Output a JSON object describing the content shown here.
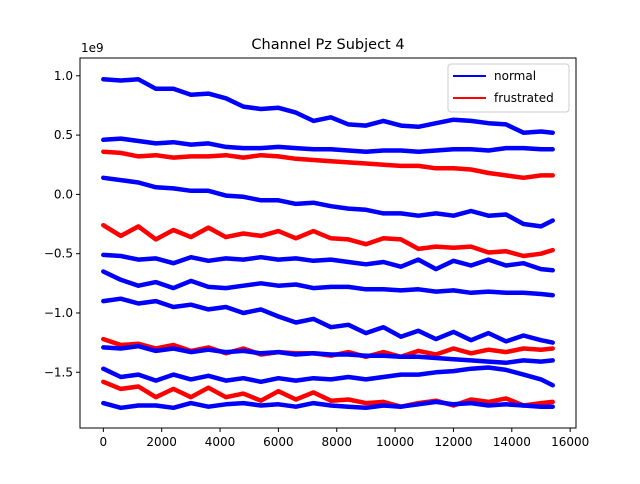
{
  "chart_data": {
    "type": "line",
    "title": "Channel Pz Subject 4",
    "xlabel": "",
    "ylabel": "",
    "y_scale_label": "1e9",
    "xlim": [
      -800,
      16200
    ],
    "ylim": [
      -1.97,
      1.15
    ],
    "x_ticks": [
      0,
      2000,
      4000,
      6000,
      8000,
      10000,
      12000,
      14000,
      16000
    ],
    "x_tick_labels": [
      "0",
      "2000",
      "4000",
      "6000",
      "8000",
      "10000",
      "12000",
      "14000",
      "16000"
    ],
    "y_ticks": [
      -1.5,
      -1.0,
      -0.5,
      0.0,
      0.5,
      1.0
    ],
    "y_tick_labels": [
      "−1.5",
      "−1.0",
      "−0.5",
      "0.0",
      "0.5",
      "1.0"
    ],
    "grid": false,
    "legend_position": "top-right",
    "legend": [
      {
        "label": "normal",
        "color": "#0000ff"
      },
      {
        "label": "frustrated",
        "color": "#ff0000"
      }
    ],
    "x": [
      0,
      600,
      1200,
      1800,
      2400,
      3000,
      3600,
      4200,
      4800,
      5400,
      6000,
      6600,
      7200,
      7800,
      8400,
      9000,
      9600,
      10200,
      10800,
      11400,
      12000,
      12600,
      13200,
      13800,
      14400,
      15000,
      15400
    ],
    "series": [
      {
        "class": "normal",
        "color": "#0000ff",
        "values": [
          0.97,
          0.96,
          0.97,
          0.89,
          0.89,
          0.84,
          0.85,
          0.81,
          0.74,
          0.72,
          0.73,
          0.69,
          0.62,
          0.65,
          0.59,
          0.58,
          0.62,
          0.58,
          0.57,
          0.6,
          0.63,
          0.62,
          0.6,
          0.59,
          0.52,
          0.53,
          0.52
        ]
      },
      {
        "class": "normal",
        "color": "#0000ff",
        "values": [
          0.46,
          0.47,
          0.45,
          0.43,
          0.44,
          0.42,
          0.43,
          0.4,
          0.39,
          0.39,
          0.4,
          0.39,
          0.38,
          0.38,
          0.37,
          0.36,
          0.37,
          0.37,
          0.36,
          0.37,
          0.38,
          0.38,
          0.37,
          0.39,
          0.39,
          0.38,
          0.38
        ]
      },
      {
        "class": "frustrated",
        "color": "#ff0000",
        "values": [
          0.36,
          0.35,
          0.32,
          0.33,
          0.31,
          0.32,
          0.32,
          0.33,
          0.31,
          0.33,
          0.32,
          0.3,
          0.29,
          0.28,
          0.27,
          0.26,
          0.25,
          0.24,
          0.24,
          0.22,
          0.22,
          0.21,
          0.18,
          0.16,
          0.14,
          0.16,
          0.16
        ]
      },
      {
        "class": "normal",
        "color": "#0000ff",
        "values": [
          0.14,
          0.12,
          0.1,
          0.06,
          0.05,
          0.03,
          0.03,
          -0.01,
          -0.02,
          -0.05,
          -0.05,
          -0.08,
          -0.07,
          -0.1,
          -0.12,
          -0.13,
          -0.16,
          -0.16,
          -0.18,
          -0.16,
          -0.18,
          -0.14,
          -0.18,
          -0.17,
          -0.25,
          -0.27,
          -0.22
        ]
      },
      {
        "class": "frustrated",
        "color": "#ff0000",
        "values": [
          -0.26,
          -0.35,
          -0.27,
          -0.38,
          -0.3,
          -0.36,
          -0.28,
          -0.36,
          -0.33,
          -0.35,
          -0.31,
          -0.37,
          -0.31,
          -0.37,
          -0.38,
          -0.42,
          -0.37,
          -0.38,
          -0.46,
          -0.44,
          -0.45,
          -0.44,
          -0.49,
          -0.48,
          -0.52,
          -0.5,
          -0.47
        ]
      },
      {
        "class": "normal",
        "color": "#0000ff",
        "values": [
          -0.51,
          -0.52,
          -0.55,
          -0.54,
          -0.58,
          -0.53,
          -0.56,
          -0.54,
          -0.55,
          -0.53,
          -0.55,
          -0.54,
          -0.56,
          -0.55,
          -0.57,
          -0.59,
          -0.57,
          -0.61,
          -0.55,
          -0.63,
          -0.56,
          -0.6,
          -0.55,
          -0.6,
          -0.58,
          -0.63,
          -0.64
        ]
      },
      {
        "class": "normal",
        "color": "#0000ff",
        "values": [
          -0.65,
          -0.72,
          -0.77,
          -0.74,
          -0.79,
          -0.73,
          -0.78,
          -0.79,
          -0.77,
          -0.75,
          -0.77,
          -0.76,
          -0.79,
          -0.78,
          -0.78,
          -0.8,
          -0.8,
          -0.81,
          -0.8,
          -0.82,
          -0.81,
          -0.83,
          -0.82,
          -0.83,
          -0.83,
          -0.84,
          -0.85
        ]
      },
      {
        "class": "normal",
        "color": "#0000ff",
        "values": [
          -0.9,
          -0.88,
          -0.92,
          -0.9,
          -0.95,
          -0.93,
          -0.97,
          -0.95,
          -1.0,
          -0.97,
          -1.03,
          -1.08,
          -1.05,
          -1.12,
          -1.1,
          -1.17,
          -1.12,
          -1.2,
          -1.15,
          -1.22,
          -1.16,
          -1.23,
          -1.17,
          -1.24,
          -1.19,
          -1.23,
          -1.25
        ]
      },
      {
        "class": "frustrated",
        "color": "#ff0000",
        "values": [
          -1.22,
          -1.27,
          -1.26,
          -1.3,
          -1.27,
          -1.32,
          -1.29,
          -1.34,
          -1.3,
          -1.35,
          -1.33,
          -1.34,
          -1.34,
          -1.36,
          -1.33,
          -1.37,
          -1.33,
          -1.37,
          -1.32,
          -1.35,
          -1.3,
          -1.34,
          -1.31,
          -1.33,
          -1.3,
          -1.31,
          -1.3
        ]
      },
      {
        "class": "normal",
        "color": "#0000ff",
        "values": [
          -1.29,
          -1.3,
          -1.28,
          -1.32,
          -1.3,
          -1.33,
          -1.31,
          -1.33,
          -1.32,
          -1.34,
          -1.33,
          -1.35,
          -1.34,
          -1.35,
          -1.35,
          -1.36,
          -1.36,
          -1.37,
          -1.37,
          -1.38,
          -1.39,
          -1.4,
          -1.41,
          -1.42,
          -1.4,
          -1.41,
          -1.4
        ]
      },
      {
        "class": "normal",
        "color": "#0000ff",
        "values": [
          -1.47,
          -1.54,
          -1.52,
          -1.57,
          -1.52,
          -1.56,
          -1.53,
          -1.57,
          -1.55,
          -1.58,
          -1.55,
          -1.57,
          -1.55,
          -1.56,
          -1.54,
          -1.56,
          -1.54,
          -1.52,
          -1.52,
          -1.5,
          -1.49,
          -1.47,
          -1.46,
          -1.48,
          -1.52,
          -1.56,
          -1.61
        ]
      },
      {
        "class": "frustrated",
        "color": "#ff0000",
        "values": [
          -1.58,
          -1.64,
          -1.62,
          -1.71,
          -1.64,
          -1.71,
          -1.63,
          -1.71,
          -1.68,
          -1.74,
          -1.66,
          -1.73,
          -1.67,
          -1.74,
          -1.73,
          -1.76,
          -1.75,
          -1.79,
          -1.76,
          -1.74,
          -1.78,
          -1.73,
          -1.75,
          -1.72,
          -1.78,
          -1.76,
          -1.75
        ]
      },
      {
        "class": "normal",
        "color": "#0000ff",
        "values": [
          -1.76,
          -1.8,
          -1.78,
          -1.78,
          -1.8,
          -1.76,
          -1.79,
          -1.77,
          -1.76,
          -1.78,
          -1.77,
          -1.79,
          -1.76,
          -1.78,
          -1.79,
          -1.8,
          -1.78,
          -1.79,
          -1.77,
          -1.75,
          -1.77,
          -1.76,
          -1.78,
          -1.77,
          -1.78,
          -1.79,
          -1.79
        ]
      }
    ]
  }
}
